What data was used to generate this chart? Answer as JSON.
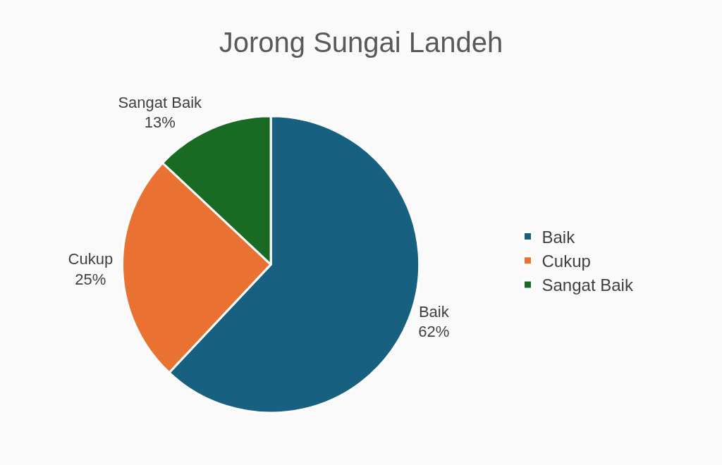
{
  "chart_data": {
    "type": "pie",
    "title": "Jorong Sungai Landeh",
    "categories": [
      "Baik",
      "Cukup",
      "Sangat Baik"
    ],
    "values": [
      62,
      25,
      13
    ],
    "value_labels": [
      "62%",
      "25%",
      "13%"
    ],
    "colors": [
      "#17607f",
      "#e97132",
      "#196b24"
    ],
    "legend": "right"
  }
}
